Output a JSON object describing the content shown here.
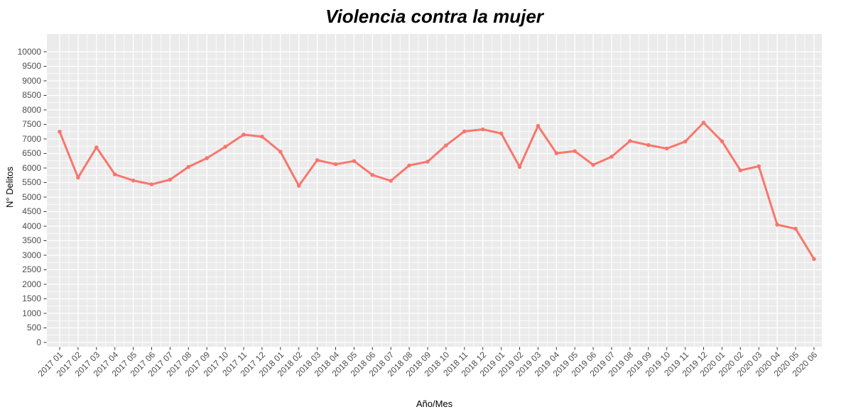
{
  "chart_data": {
    "type": "line",
    "title": "Violencia contra la mujer",
    "xlabel": "Año/Mes",
    "ylabel": "N° Delitos",
    "x": [
      "2017 01",
      "2017 02",
      "2017 03",
      "2017 04",
      "2017 05",
      "2017 06",
      "2017 07",
      "2017 08",
      "2017 09",
      "2017 10",
      "2017 11",
      "2017 12",
      "2018 01",
      "2018 02",
      "2018 03",
      "2018 04",
      "2018 05",
      "2018 06",
      "2018 07",
      "2018 08",
      "2018 09",
      "2018 10",
      "2018 11",
      "2018 12",
      "2019 01",
      "2019 02",
      "2019 03",
      "2019 04",
      "2019 05",
      "2019 06",
      "2019 07",
      "2019 08",
      "2019 09",
      "2019 10",
      "2019 11",
      "2019 12",
      "2020 01",
      "2020 02",
      "2020 03",
      "2020 04",
      "2020 05",
      "2020 06"
    ],
    "values": [
      7250,
      5670,
      6710,
      5780,
      5570,
      5440,
      5600,
      6040,
      6340,
      6730,
      7150,
      7080,
      6560,
      5390,
      6270,
      6130,
      6240,
      5760,
      5560,
      6090,
      6220,
      6780,
      7260,
      7330,
      7190,
      6040,
      7450,
      6510,
      6580,
      6110,
      6390,
      6930,
      6790,
      6670,
      6910,
      7560,
      6920,
      5920,
      6060,
      4050,
      3910,
      2870
    ],
    "ylim": [
      0,
      10000
    ],
    "ytick_step": 500,
    "grid": "major and minor gridlines, white on gray panel",
    "legend": "none",
    "colors": {
      "line": "#F8766D",
      "panel_background": "#EBEBEB",
      "major_grid": "#FFFFFF",
      "minor_grid": "#FFFFFF",
      "tick_labels": "#4D4D4D",
      "tick_marks": "#333333",
      "titles": "#000000"
    }
  }
}
